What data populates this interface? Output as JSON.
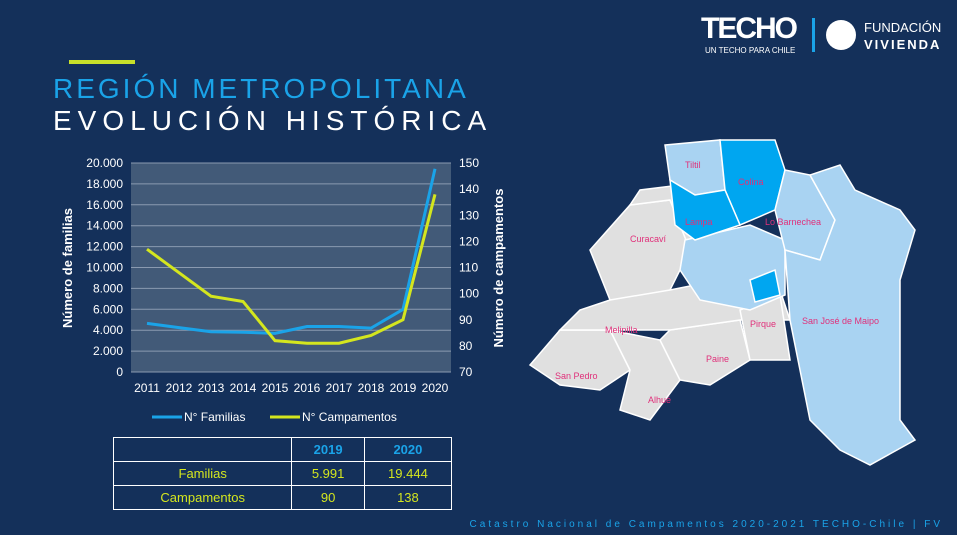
{
  "header": {
    "logo_techo": "TECHO",
    "logo_techo_sub": "UN TECHO PARA CHILE",
    "logo_fv_1": "FUNDACIÓN",
    "logo_fv_2": "VIVIENDA"
  },
  "title": {
    "line1": "REGIÓN METROPOLITANA",
    "line2": "EVOLUCIÓN HISTÓRICA"
  },
  "chart_data": {
    "type": "line",
    "categories": [
      "2011",
      "2012",
      "2013",
      "2014",
      "2015",
      "2016",
      "2017",
      "2018",
      "2019",
      "2020"
    ],
    "series": [
      {
        "name": "N° Familias",
        "axis": "left",
        "color": "#1aa3e8",
        "values": [
          4650,
          4250,
          3850,
          3800,
          3700,
          4350,
          4350,
          4200,
          5991,
          19444
        ]
      },
      {
        "name": "N° Campamentos",
        "axis": "right",
        "color": "#d4e61e",
        "values": [
          117,
          108,
          99,
          97,
          82,
          81,
          81,
          84,
          90,
          138
        ]
      }
    ],
    "ylabel": "Número de familias",
    "y2label": "Número de campamentos",
    "ylim": [
      0,
      20000
    ],
    "y2lim": [
      70,
      150
    ],
    "yticks": [
      "0",
      "2.000",
      "4.000",
      "6.000",
      "8.000",
      "10.000",
      "12.000",
      "14.000",
      "16.000",
      "18.000",
      "20.000"
    ],
    "y2ticks": [
      "70",
      "80",
      "90",
      "100",
      "110",
      "120",
      "130",
      "140",
      "150"
    ],
    "grid": true,
    "legend": "bottom"
  },
  "table": {
    "headers": [
      "",
      "2019",
      "2020"
    ],
    "rows": [
      [
        "Familias",
        "5.991",
        "19.444"
      ],
      [
        "Campamentos",
        "90",
        "138"
      ]
    ]
  },
  "map": {
    "labels": [
      "Tiltil",
      "Colina",
      "Lampa",
      "Lo Barnechea",
      "Curacaví",
      "Melipilla",
      "Pirque",
      "San José de Maipo",
      "Paine",
      "San Pedro",
      "Alhué"
    ]
  },
  "footer": "Catastro Nacional de Campamentos 2020-2021 TECHO-Chile | FV"
}
